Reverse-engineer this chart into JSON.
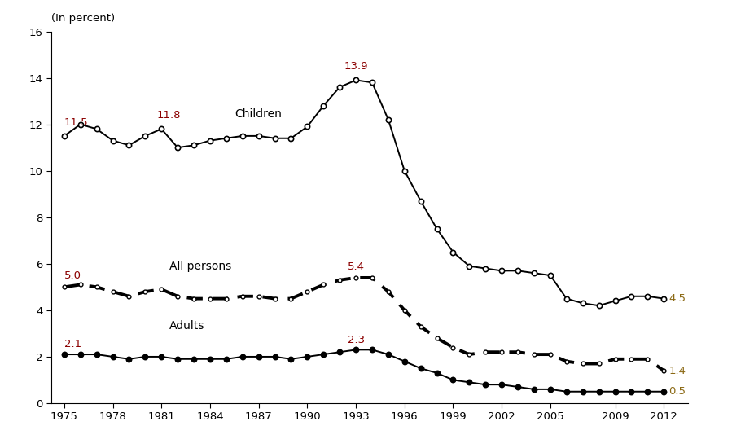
{
  "years": [
    1975,
    1976,
    1977,
    1978,
    1979,
    1980,
    1981,
    1982,
    1983,
    1984,
    1985,
    1986,
    1987,
    1988,
    1989,
    1990,
    1991,
    1992,
    1993,
    1994,
    1995,
    1996,
    1997,
    1998,
    1999,
    2000,
    2001,
    2002,
    2003,
    2004,
    2005,
    2006,
    2007,
    2008,
    2009,
    2010,
    2011,
    2012
  ],
  "children": [
    11.5,
    12.0,
    11.8,
    11.3,
    11.1,
    11.5,
    11.8,
    11.0,
    11.1,
    11.3,
    11.4,
    11.5,
    11.5,
    11.4,
    11.4,
    11.9,
    12.8,
    13.6,
    13.9,
    13.8,
    12.2,
    10.0,
    8.7,
    7.5,
    6.5,
    5.9,
    5.8,
    5.7,
    5.7,
    5.6,
    5.5,
    4.5,
    4.3,
    4.2,
    4.4,
    4.6,
    4.6,
    4.5
  ],
  "all_persons": [
    5.0,
    5.1,
    5.0,
    4.8,
    4.6,
    4.8,
    4.9,
    4.6,
    4.5,
    4.5,
    4.5,
    4.6,
    4.6,
    4.5,
    4.5,
    4.8,
    5.1,
    5.3,
    5.4,
    5.4,
    4.8,
    4.0,
    3.3,
    2.8,
    2.4,
    2.1,
    2.2,
    2.2,
    2.2,
    2.1,
    2.1,
    1.8,
    1.7,
    1.7,
    1.9,
    1.9,
    1.9,
    1.4
  ],
  "adults": [
    2.1,
    2.1,
    2.1,
    2.0,
    1.9,
    2.0,
    2.0,
    1.9,
    1.9,
    1.9,
    1.9,
    2.0,
    2.0,
    2.0,
    1.9,
    2.0,
    2.1,
    2.2,
    2.3,
    2.3,
    2.1,
    1.8,
    1.5,
    1.3,
    1.0,
    0.9,
    0.8,
    0.8,
    0.7,
    0.6,
    0.6,
    0.5,
    0.5,
    0.5,
    0.5,
    0.5,
    0.5,
    0.5
  ],
  "ylabel": "(In percent)",
  "ylim": [
    0,
    16
  ],
  "yticks": [
    0,
    2,
    4,
    6,
    8,
    10,
    12,
    14,
    16
  ],
  "xticks": [
    1975,
    1978,
    1981,
    1984,
    1987,
    1990,
    1993,
    1996,
    1999,
    2002,
    2005,
    2009,
    2012
  ],
  "dark_red": "#8B0000",
  "brown": "#8B6914",
  "line_color": "#000000",
  "background_color": "#ffffff",
  "children_label": "Children",
  "all_persons_label": "All persons",
  "adults_label": "Adults"
}
